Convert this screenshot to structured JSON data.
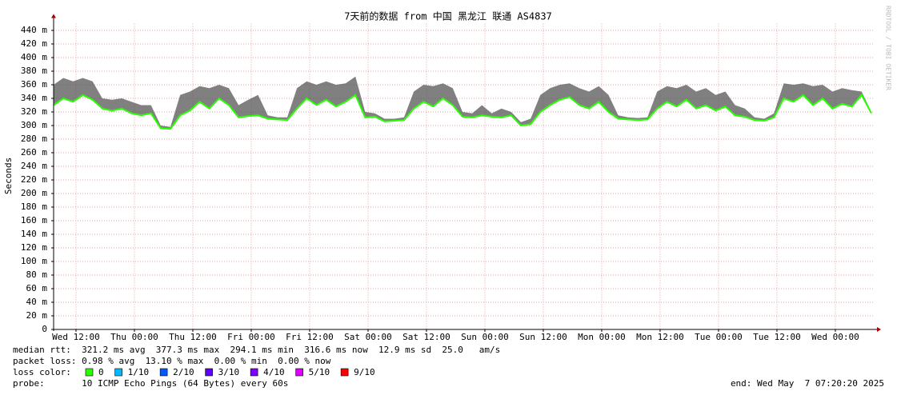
{
  "chart_data": {
    "type": "line",
    "title": "7天前的数据 from 中国 黑龙江 联通 AS4837",
    "y_label": "Seconds",
    "watermark": "RRDTOOL / TOBI OETIKER",
    "xlim": [
      0,
      168.5
    ],
    "ylim": [
      0,
      450
    ],
    "grid": true,
    "xticks": [
      {
        "value": 4.6,
        "label": "Wed 12:00"
      },
      {
        "value": 16.6,
        "label": "Thu 00:00"
      },
      {
        "value": 28.6,
        "label": "Thu 12:00"
      },
      {
        "value": 40.6,
        "label": "Fri 00:00"
      },
      {
        "value": 52.6,
        "label": "Fri 12:00"
      },
      {
        "value": 64.6,
        "label": "Sat 00:00"
      },
      {
        "value": 76.6,
        "label": "Sat 12:00"
      },
      {
        "value": 88.6,
        "label": "Sun 00:00"
      },
      {
        "value": 100.6,
        "label": "Sun 12:00"
      },
      {
        "value": 112.6,
        "label": "Mon 00:00"
      },
      {
        "value": 124.6,
        "label": "Mon 12:00"
      },
      {
        "value": 136.6,
        "label": "Tue 00:00"
      },
      {
        "value": 148.6,
        "label": "Tue 12:00"
      },
      {
        "value": 160.6,
        "label": "Wed 00:00"
      }
    ],
    "yticks": [
      0,
      {
        "value": 20,
        "label": "20 m"
      },
      {
        "value": 40,
        "label": "40 m"
      },
      {
        "value": 60,
        "label": "60 m"
      },
      {
        "value": 80,
        "label": "80 m"
      },
      {
        "value": 100,
        "label": "100 m"
      },
      {
        "value": 120,
        "label": "120 m"
      },
      {
        "value": 140,
        "label": "140 m"
      },
      {
        "value": 160,
        "label": "160 m"
      },
      {
        "value": 180,
        "label": "180 m"
      },
      {
        "value": 200,
        "label": "200 m"
      },
      {
        "value": 220,
        "label": "220 m"
      },
      {
        "value": 240,
        "label": "240 m"
      },
      {
        "value": 260,
        "label": "260 m"
      },
      {
        "value": 280,
        "label": "280 m"
      },
      {
        "value": 300,
        "label": "300 m"
      },
      {
        "value": 320,
        "label": "320 m"
      },
      {
        "value": 340,
        "label": "340 m"
      },
      {
        "value": 360,
        "label": "360 m"
      },
      {
        "value": 380,
        "label": "380 m"
      },
      {
        "value": 400,
        "label": "400 m"
      },
      {
        "value": 420,
        "label": "420 m"
      },
      {
        "value": 440,
        "label": "440 m"
      }
    ],
    "x": [
      0,
      2,
      4,
      6,
      8,
      10,
      12,
      14,
      16,
      18,
      20,
      22,
      24,
      26,
      28,
      30,
      32,
      34,
      36,
      38,
      40,
      42,
      44,
      46,
      48,
      50,
      52,
      54,
      56,
      58,
      60,
      62,
      64,
      66,
      68,
      70,
      72,
      74,
      76,
      78,
      80,
      82,
      84,
      86,
      88,
      90,
      92,
      94,
      96,
      98,
      100,
      102,
      104,
      106,
      108,
      110,
      112,
      114,
      116,
      118,
      120,
      122,
      124,
      126,
      128,
      130,
      132,
      134,
      136,
      138,
      140,
      142,
      144,
      146,
      148,
      150,
      152,
      154,
      156,
      158,
      160,
      162,
      164,
      166,
      168
    ],
    "median_color": "#26ff00",
    "smoke_color": "#555555",
    "median": [
      330,
      340,
      335,
      345,
      338,
      325,
      322,
      325,
      318,
      315,
      318,
      296,
      295,
      315,
      322,
      335,
      325,
      340,
      330,
      312,
      314,
      315,
      310,
      309,
      308,
      325,
      340,
      330,
      338,
      328,
      335,
      345,
      312,
      313,
      306,
      307,
      308,
      325,
      335,
      328,
      340,
      330,
      313,
      312,
      315,
      313,
      312,
      315,
      300,
      302,
      320,
      330,
      338,
      342,
      330,
      325,
      335,
      320,
      310,
      309,
      308,
      309,
      325,
      335,
      328,
      338,
      325,
      330,
      322,
      328,
      315,
      313,
      308,
      307,
      312,
      340,
      335,
      345,
      330,
      340,
      325,
      332,
      328,
      345,
      318
    ],
    "smoke_top": [
      360,
      370,
      365,
      370,
      365,
      340,
      338,
      340,
      335,
      330,
      330,
      300,
      298,
      345,
      350,
      358,
      355,
      360,
      355,
      330,
      338,
      345,
      315,
      312,
      312,
      355,
      365,
      360,
      365,
      360,
      362,
      372,
      320,
      318,
      310,
      310,
      312,
      350,
      360,
      358,
      362,
      355,
      320,
      318,
      330,
      318,
      325,
      320,
      305,
      310,
      345,
      355,
      360,
      362,
      355,
      350,
      358,
      345,
      315,
      312,
      311,
      312,
      350,
      358,
      355,
      360,
      350,
      355,
      345,
      350,
      330,
      325,
      312,
      310,
      318,
      362,
      360,
      362,
      358,
      360,
      350,
      355,
      352,
      350,
      320
    ],
    "stats": [
      "median rtt:  321.2 ms avg  377.3 ms max  294.1 ms min  316.6 ms now  12.9 ms sd  25.0   am/s",
      "packet loss: 0.98 % avg  13.10 % max  0.00 % min  0.00 % now"
    ],
    "loss_title": "loss color:",
    "loss_colors": [
      {
        "label": "0",
        "color": "#26ff00"
      },
      {
        "label": "1/10",
        "color": "#00b8ff"
      },
      {
        "label": "2/10",
        "color": "#0059ff"
      },
      {
        "label": "3/10",
        "color": "#5e00ff"
      },
      {
        "label": "4/10",
        "color": "#7e00ff"
      },
      {
        "label": "5/10",
        "color": "#dd00ff"
      },
      {
        "label": "9/10",
        "color": "#ff0000"
      }
    ],
    "probe": "probe:       10 ICMP Echo Pings (64 Bytes) every 60s",
    "end": "end: Wed May  7 07:20:20 2025"
  }
}
